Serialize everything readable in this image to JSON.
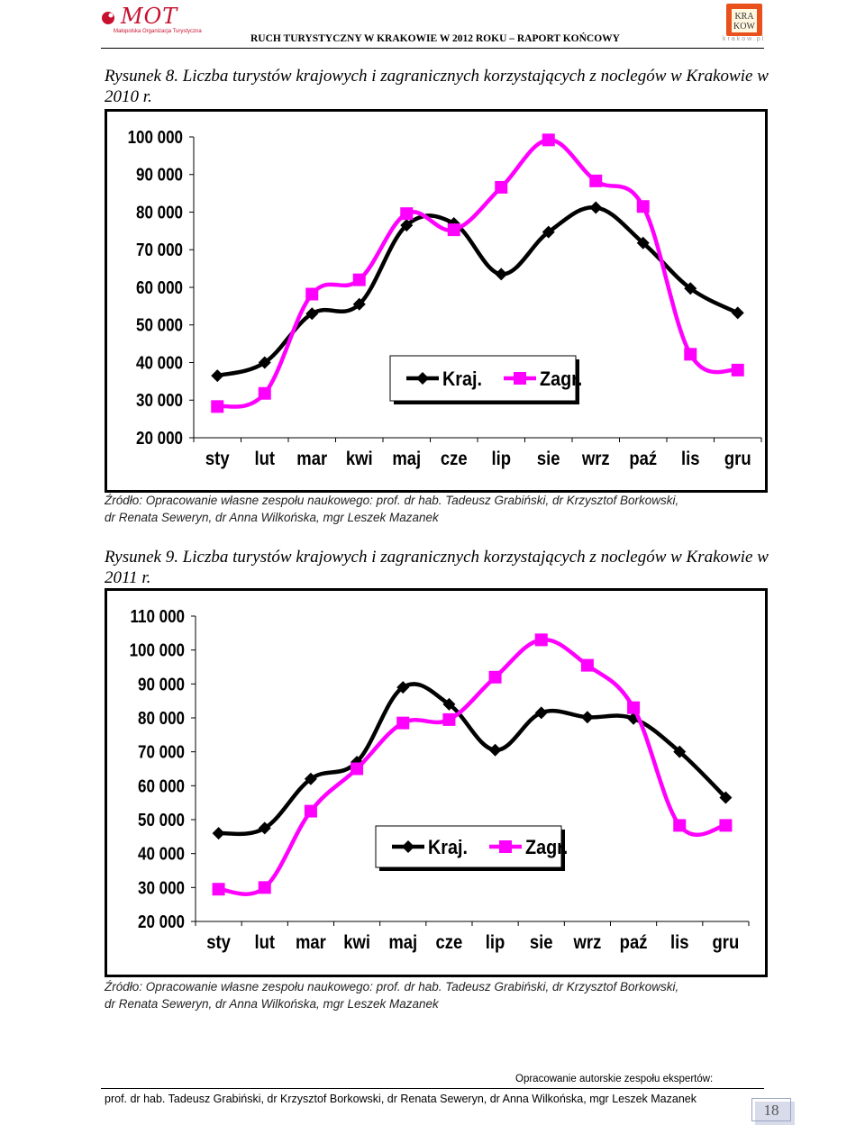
{
  "header": {
    "mot_logo_text": "MOT",
    "mot_logo_subtitle": "Małopolska Organizacja Turystyczna",
    "krakow_logo_text": [
      "KRA",
      "KOW"
    ],
    "krakow_logo_url": "krakow.pl",
    "title": "RUCH TURYSTYCZNY W KRAKOWIE W 2012 ROKU – RAPORT KOŃCOWY"
  },
  "figure1": {
    "caption": "Rysunek 8. Liczba turystów krajowych i zagranicznych korzystających z noclegów w Krakowie w 2010 r.",
    "source_line1": "Źródło: Opracowanie własne zespołu naukowego: prof. dr hab. Tadeusz Grabiński, dr Krzysztof Borkowski,",
    "source_line2": "dr Renata Seweryn, dr Anna Wilkońska, mgr Leszek Mazanek"
  },
  "figure2": {
    "caption": "Rysunek 9. Liczba turystów krajowych i zagranicznych korzystających z noclegów w Krakowie w 2011 r.",
    "source_line1": "Źródło: Opracowanie własne zespołu naukowego: prof. dr hab. Tadeusz Grabiński, dr Krzysztof Borkowski,",
    "source_line2": "dr Renata Seweryn, dr Anna Wilkońska, mgr Leszek Mazanek"
  },
  "footer": {
    "credit": "Opracowanie autorskie zespołu ekspertów:",
    "authors": "prof. dr hab. Tadeusz Grabiński, dr Krzysztof Borkowski, dr Renata Seweryn, dr Anna Wilkońska, mgr Leszek Mazanek",
    "page_number": "18"
  },
  "colors": {
    "kraj": "#000000",
    "zagr": "#ff00ff",
    "grid": "#000000"
  },
  "chart_data": [
    {
      "type": "line",
      "title": "",
      "categories": [
        "sty",
        "lut",
        "mar",
        "kwi",
        "maj",
        "cze",
        "lip",
        "sie",
        "wrz",
        "paź",
        "lis",
        "gru"
      ],
      "ylim": [
        20000,
        100000
      ],
      "yticks": [
        20000,
        30000,
        40000,
        50000,
        60000,
        70000,
        80000,
        90000,
        100000
      ],
      "ytick_labels": [
        "20 000",
        "30 000",
        "40 000",
        "50 000",
        "60 000",
        "70 000",
        "80 000",
        "90 000",
        "100 000"
      ],
      "grid": false,
      "legend": "inside-lower-center",
      "series": [
        {
          "name": "Kraj.",
          "color": "#000000",
          "marker": "diamond",
          "values": [
            36500,
            40000,
            53000,
            55500,
            76500,
            77000,
            63500,
            74700,
            81200,
            71800,
            59700,
            53200
          ]
        },
        {
          "name": "Zagr.",
          "color": "#ff00ff",
          "marker": "square",
          "values": [
            28300,
            31800,
            58200,
            62000,
            79600,
            75300,
            86600,
            99200,
            88300,
            81500,
            42200,
            38000
          ]
        }
      ]
    },
    {
      "type": "line",
      "title": "",
      "categories": [
        "sty",
        "lut",
        "mar",
        "kwi",
        "maj",
        "cze",
        "lip",
        "sie",
        "wrz",
        "paź",
        "lis",
        "gru"
      ],
      "ylim": [
        20000,
        110000
      ],
      "yticks": [
        20000,
        30000,
        40000,
        50000,
        60000,
        70000,
        80000,
        90000,
        100000,
        110000
      ],
      "ytick_labels": [
        "20 000",
        "30 000",
        "40 000",
        "50 000",
        "60 000",
        "70 000",
        "80 000",
        "90 000",
        "100 000",
        "110 000"
      ],
      "grid": false,
      "legend": "inside-lower-center",
      "series": [
        {
          "name": "Kraj.",
          "color": "#000000",
          "marker": "diamond",
          "values": [
            46000,
            47500,
            62000,
            67000,
            89000,
            84000,
            70500,
            81500,
            80200,
            79800,
            70000,
            56500
          ]
        },
        {
          "name": "Zagr.",
          "color": "#ff00ff",
          "marker": "square",
          "values": [
            29500,
            30000,
            52500,
            65000,
            78500,
            79500,
            92000,
            103000,
            95500,
            83000,
            48300,
            48300
          ]
        }
      ]
    }
  ]
}
